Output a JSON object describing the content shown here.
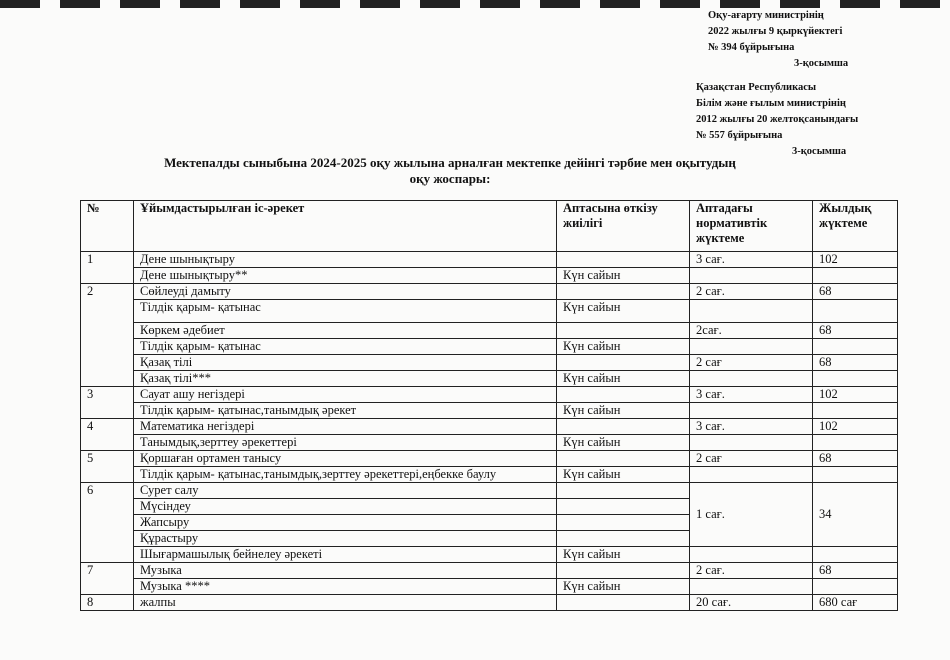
{
  "approvals": [
    {
      "lines": [
        "Оқу-ағарту министрінің",
        "2022 жылғы 9 қыркүйектегі",
        "№ 394 бұйрығына"
      ],
      "appendix": "3-қосымша"
    },
    {
      "lines": [
        "Қазақстан Республикасы",
        "Білім және ғылым министрінің",
        "2012 жылғы 20 желтоқсанындағы",
        "№ 557 бұйрығына"
      ],
      "appendix": "3-қосымша"
    }
  ],
  "title": [
    "Мектепалды сыныбына 2024-2025 оқу жылына арналған мектепке дейінгі тәрбие мен оқытудың",
    "оқу жоспары:"
  ],
  "table": {
    "headers": [
      "№",
      "Ұйымдастырылған іс-әрекет",
      "Аптасына өткізу жиілігі",
      "Аптадағы нормативтік жүктеме",
      "Жылдық жүктеме"
    ],
    "rows": [
      [
        "1",
        "Дене шынықтыру",
        "",
        "3 сағ.",
        "102"
      ],
      [
        "",
        "Дене шынықтыру**",
        "Күн сайын",
        "",
        ""
      ],
      [
        "2",
        "Сөйлеуді дамыту",
        "",
        "2 сағ.",
        "68"
      ],
      [
        "",
        "Тілдік қарым- қатынас",
        "Күн сайын",
        "",
        ""
      ],
      [
        "",
        "Көркем әдебиет",
        "",
        "2сағ.",
        "68"
      ],
      [
        "",
        "Тілдік қарым- қатынас",
        "Күн сайын",
        "",
        ""
      ],
      [
        "",
        "Қазақ тілі",
        "",
        "2 сағ",
        "68"
      ],
      [
        "",
        "Қазақ тілі***",
        "Күн сайын",
        "",
        ""
      ],
      [
        "3",
        "Сауат ашу негіздері",
        "",
        "3 сағ.",
        "102"
      ],
      [
        "",
        "Тілдік қарым- қатынас,танымдық әрекет",
        "Күн сайын",
        "",
        ""
      ],
      [
        "4",
        "Математика негіздері",
        "",
        "3 сағ.",
        "102"
      ],
      [
        "",
        "Танымдық,зерттеу әрекеттері",
        "Күн сайын",
        "",
        ""
      ],
      [
        "5",
        "Қоршаған ортамен танысу",
        "",
        "2 сағ",
        "68"
      ],
      [
        "",
        "Тілдік қарым- қатынас,танымдық,зерттеу әрекеттері,еңбекке баулу",
        "Күн сайын",
        "",
        ""
      ],
      [
        "6",
        "Сурет салу",
        "",
        "1 сағ.",
        "34"
      ],
      [
        "",
        "Мүсіндеу",
        "",
        "",
        ""
      ],
      [
        "",
        "Жапсыру",
        "",
        "",
        ""
      ],
      [
        "",
        "Құрастыру",
        "",
        "",
        ""
      ],
      [
        "",
        "Шығармашылық бейнелеу әрекеті",
        "Күн сайын",
        "",
        ""
      ],
      [
        "7",
        "Музыка",
        "",
        "2 сағ.",
        "68"
      ],
      [
        "",
        "Музыка ****",
        "Күн сайын",
        "",
        ""
      ],
      [
        "8",
        "жалпы",
        "",
        "20 сағ.",
        "680 сағ"
      ]
    ]
  }
}
